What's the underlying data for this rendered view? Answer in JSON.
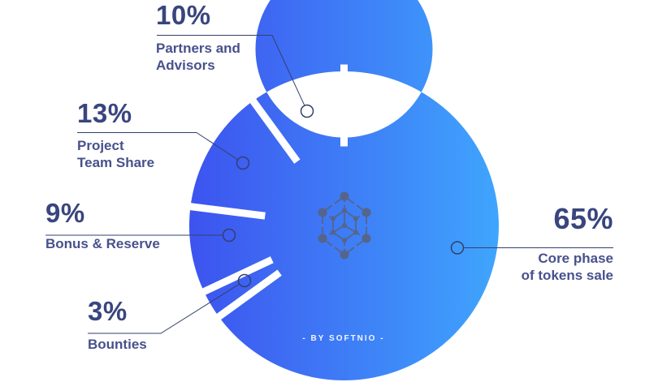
{
  "chart_data": {
    "type": "pie",
    "subtype": "donut",
    "unit": "%",
    "direction": "clockwise",
    "start_angle_deg": 0,
    "inner_radius_ratio": 0.57,
    "segments": [
      {
        "label": "Core phase\nof tokens sale",
        "pct_label": "65%",
        "value": 65
      },
      {
        "label": "Bounties",
        "pct_label": "3%",
        "value": 3
      },
      {
        "label": "Bonus & Reserve",
        "pct_label": "9%",
        "value": 9
      },
      {
        "label": "Project\nTeam Share",
        "pct_label": "13%",
        "value": 13
      },
      {
        "label": "Partners and\nAdvisors",
        "pct_label": "10%",
        "value": 10
      }
    ],
    "center_byline": "- BY SOFTNIO -",
    "center_icon": "blockchain-hexagon-icon",
    "legend": "none",
    "colors": {
      "gradient_left": "#3d53ef",
      "gradient_right": "#3fa5fd",
      "separator": "#ffffff",
      "leader_line": "#33406f",
      "text_percent": "#39457e",
      "text_label": "#47518c",
      "byline_text": "#f4f7ff",
      "icon_stroke": "#5b6070",
      "icon_dot": "#4a7ff5"
    }
  }
}
